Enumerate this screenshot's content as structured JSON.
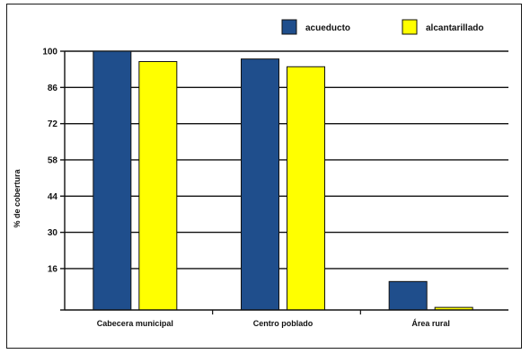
{
  "chart_data": {
    "type": "bar",
    "categories": [
      "Cabecera municipal",
      "Centro poblado",
      "Área rural"
    ],
    "series": [
      {
        "name": "acueducto",
        "values": [
          100,
          97,
          11
        ]
      },
      {
        "name": "alcantarillado",
        "values": [
          96,
          94,
          1
        ]
      }
    ],
    "ylabel": "% de cobertura",
    "xlabel": "",
    "title": "",
    "ylim": [
      0,
      100
    ],
    "yticks": [
      16,
      30,
      44,
      58,
      72,
      86,
      100
    ],
    "grid": true,
    "legend_position": "top-right",
    "colors": {
      "acueducto": "#1f4e8c",
      "alcantarillado": "#ffff00",
      "bar_outline": "#111111",
      "gridline": "#111111"
    }
  }
}
